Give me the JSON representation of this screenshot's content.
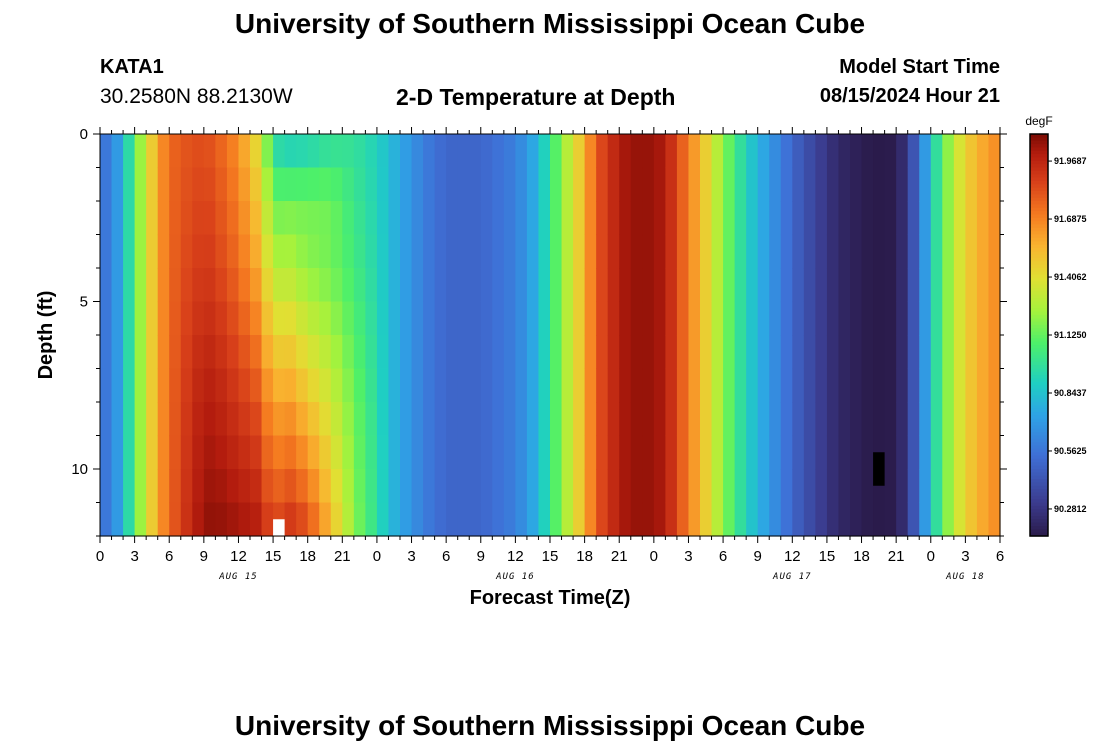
{
  "header": {
    "title": "University of Southern Mississippi Ocean Cube",
    "station_id": "KATA1",
    "coords": "30.2580N  88.2130W",
    "subtitle": "2-D Temperature at Depth",
    "model_start_label": "Model Start Time",
    "model_start_value": "08/15/2024 Hour 21"
  },
  "footer": {
    "title": "University of Southern Mississippi Ocean Cube"
  },
  "chart_data": {
    "type": "heatmap",
    "title": "2-D Temperature at Depth",
    "xlabel": "Forecast Time(Z)",
    "ylabel": "Depth (ft)",
    "x_tick_labels": [
      "0",
      "3",
      "6",
      "9",
      "12",
      "15",
      "18",
      "21",
      "0",
      "3",
      "6",
      "9",
      "12",
      "15",
      "18",
      "21",
      "0",
      "3",
      "6",
      "9",
      "12",
      "15",
      "18",
      "21",
      "0",
      "3",
      "6"
    ],
    "date_labels": [
      {
        "label": "AUG 15",
        "hour": 12
      },
      {
        "label": "AUG 16",
        "hour": 36
      },
      {
        "label": "AUG 17",
        "hour": 60
      },
      {
        "label": "AUG 18",
        "hour": 75
      }
    ],
    "x_range_hours": [
      0,
      78
    ],
    "y_range_ft": [
      0,
      12
    ],
    "y_ticks": [
      0,
      5,
      10
    ],
    "colorbar": {
      "unit": "degF",
      "tick_labels": [
        "91.9687",
        "91.6875",
        "91.4062",
        "91.1250",
        "90.8437",
        "90.5625",
        "90.2812"
      ],
      "min": 90.15,
      "max": 92.1
    },
    "surface_temperature_by_hour": [
      [
        0,
        90.55
      ],
      [
        1,
        90.6
      ],
      [
        2,
        90.8
      ],
      [
        3,
        91.1
      ],
      [
        4,
        91.35
      ],
      [
        5,
        91.6
      ],
      [
        6,
        91.75
      ],
      [
        7,
        91.8
      ],
      [
        9,
        91.83
      ],
      [
        10,
        91.79
      ],
      [
        12,
        91.65
      ],
      [
        14,
        91.35
      ],
      [
        15,
        90.93
      ],
      [
        16,
        90.85
      ],
      [
        18,
        90.87
      ],
      [
        20,
        90.95
      ],
      [
        22,
        90.98
      ],
      [
        24,
        90.9
      ],
      [
        26,
        90.75
      ],
      [
        28,
        90.6
      ],
      [
        30,
        90.5
      ],
      [
        33,
        90.5
      ],
      [
        36,
        90.6
      ],
      [
        38,
        90.8
      ],
      [
        40,
        91.2
      ],
      [
        42,
        91.55
      ],
      [
        43,
        91.8
      ],
      [
        44,
        91.9
      ],
      [
        45,
        92.0
      ],
      [
        46,
        92.05
      ],
      [
        48,
        92.05
      ],
      [
        49,
        92.0
      ],
      [
        50,
        91.85
      ],
      [
        52,
        91.55
      ],
      [
        54,
        91.2
      ],
      [
        56,
        90.9
      ],
      [
        58,
        90.7
      ],
      [
        60,
        90.5
      ],
      [
        62,
        90.35
      ],
      [
        64,
        90.22
      ],
      [
        66,
        90.17
      ],
      [
        67,
        90.15
      ],
      [
        69,
        90.16
      ],
      [
        70,
        90.3
      ],
      [
        71,
        90.55
      ],
      [
        72,
        90.85
      ],
      [
        73,
        91.1
      ],
      [
        74,
        91.3
      ],
      [
        75,
        91.45
      ],
      [
        76,
        91.55
      ],
      [
        77,
        91.62
      ],
      [
        78,
        91.68
      ]
    ],
    "deep_temperature_profiles": [
      {
        "hour": 9,
        "values_by_depth_ft": [
          [
            0,
            91.83
          ],
          [
            4,
            91.9
          ],
          [
            8,
            92.0
          ],
          [
            12,
            92.06
          ]
        ]
      },
      {
        "hour": 12,
        "values_by_depth_ft": [
          [
            0,
            91.65
          ],
          [
            4,
            91.75
          ],
          [
            8,
            91.9
          ],
          [
            12,
            92.04
          ]
        ]
      },
      {
        "hour": 14,
        "values_by_depth_ft": [
          [
            0,
            91.35
          ],
          [
            4,
            91.55
          ],
          [
            8,
            91.8
          ],
          [
            12,
            92.0
          ]
        ]
      },
      {
        "hour": 16,
        "values_by_depth_ft": [
          [
            0,
            90.85
          ],
          [
            2,
            91.15
          ],
          [
            4,
            91.3
          ],
          [
            8,
            91.65
          ],
          [
            12,
            91.95
          ]
        ]
      },
      {
        "hour": 18,
        "values_by_depth_ft": [
          [
            0,
            90.87
          ],
          [
            2,
            91.15
          ],
          [
            4,
            91.2
          ],
          [
            8,
            91.5
          ],
          [
            12,
            91.85
          ]
        ]
      },
      {
        "hour": 20,
        "values_by_depth_ft": [
          [
            0,
            90.95
          ],
          [
            2,
            91.15
          ],
          [
            4,
            91.15
          ],
          [
            8,
            91.35
          ],
          [
            12,
            91.55
          ]
        ]
      },
      {
        "hour": 22,
        "values_by_depth_ft": [
          [
            0,
            90.98
          ],
          [
            4,
            91.05
          ],
          [
            8,
            91.15
          ],
          [
            12,
            91.2
          ]
        ]
      }
    ],
    "missing_cells": [
      {
        "hour": 15,
        "depth_ft": [
          11.5,
          12
        ],
        "color": "#ffffff"
      },
      {
        "hour": 67,
        "depth_ft": [
          9.5,
          10.5
        ],
        "color": "#000000"
      }
    ]
  }
}
